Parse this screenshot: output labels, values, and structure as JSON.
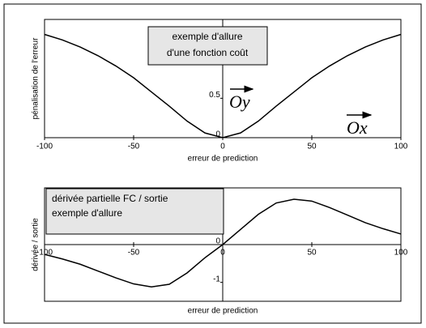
{
  "chart_data": [
    {
      "type": "line",
      "color": "#000000",
      "annotations": [
        "exemple d'allure",
        "d'une fonction coût",
        "Oy",
        "Ox"
      ],
      "x_label": "erreur de prediction",
      "y_label": "pénalisation de l'erreur",
      "x": [
        -100,
        -90,
        -80,
        -70,
        -60,
        -50,
        -40,
        -30,
        -20,
        -10,
        0,
        10,
        20,
        30,
        40,
        50,
        60,
        70,
        80,
        90,
        100
      ],
      "values": [
        1.31,
        1.24,
        1.15,
        1.04,
        0.91,
        0.76,
        0.58,
        0.4,
        0.21,
        0.06,
        0,
        0.06,
        0.21,
        0.4,
        0.58,
        0.76,
        0.91,
        1.04,
        1.15,
        1.24,
        1.31
      ],
      "xlim": [
        -100,
        100
      ],
      "ylim": [
        0,
        1.5
      ],
      "xticks": [
        -100,
        -50,
        0,
        50,
        100
      ],
      "yticks": [
        0,
        0.5
      ]
    },
    {
      "type": "line",
      "color": "#000000",
      "annotations": [
        "dérivée partielle FC / sortie",
        "exemple d'allure"
      ],
      "x_label": "erreur de prediction",
      "y_label": "dérivée / sortie",
      "x": [
        -100,
        -90,
        -80,
        -70,
        -60,
        -50,
        -40,
        -30,
        -20,
        -10,
        0,
        10,
        20,
        30,
        40,
        50,
        60,
        70,
        80,
        90,
        100
      ],
      "values": [
        -0.26,
        -0.38,
        -0.52,
        -0.7,
        -0.88,
        -1.04,
        -1.12,
        -1.05,
        -0.75,
        -0.35,
        0,
        0.4,
        0.8,
        1.1,
        1.2,
        1.15,
        0.98,
        0.78,
        0.58,
        0.42,
        0.28
      ],
      "xlim": [
        -100,
        100
      ],
      "ylim": [
        -1.5,
        1.5
      ],
      "xticks": [
        -100,
        -50,
        0,
        50,
        100
      ],
      "yticks": [
        -1,
        0
      ]
    }
  ]
}
